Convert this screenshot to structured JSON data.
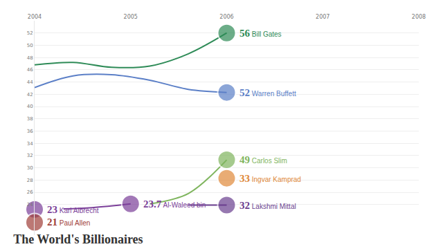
{
  "chart_data": {
    "type": "line",
    "title": "The World's Billionaires",
    "xlim": [
      2004,
      2008
    ],
    "xticks": [
      2004,
      2005,
      2006,
      2007,
      2008
    ],
    "ylim": [
      19,
      54
    ],
    "yticks": [
      24,
      26,
      28,
      30,
      32,
      34,
      36,
      38,
      40,
      42,
      44,
      46,
      48,
      50,
      52
    ],
    "grid": true,
    "marker": "circle",
    "line_style": "solid",
    "series": [
      {
        "name": "Bill Gates",
        "label": "56",
        "color": "#2e8b57",
        "x": [
          2004,
          2004.4,
          2004.8,
          2005.2,
          2005.6,
          2006
        ],
        "values": [
          46.8,
          47.2,
          46.4,
          46.6,
          48.6,
          52.0
        ]
      },
      {
        "name": "Warren Buffett",
        "label": "52",
        "color": "#5b7fc7",
        "x": [
          2004,
          2004.4,
          2004.8,
          2005.2,
          2005.6,
          2006
        ],
        "values": [
          43.1,
          45.0,
          45.2,
          44.3,
          42.8,
          42.3
        ]
      },
      {
        "name": "Carlos Slim",
        "label": "49",
        "color": "#7fb55e",
        "x": [
          2005.2,
          2005.6,
          2006
        ],
        "values": [
          24.1,
          25.8,
          31.3
        ]
      },
      {
        "name": "Ingvar Kamprad",
        "label": "33",
        "color": "#e0893a",
        "x": [
          2006
        ],
        "values": [
          28.3
        ]
      },
      {
        "name": "Lakshmi Mittal",
        "label": "32",
        "color": "#6b3f8f",
        "x": [
          2005.6,
          2006
        ],
        "values": [
          23.9,
          23.9
        ]
      },
      {
        "name": "Al-Waleed bin",
        "label": "23.7",
        "color": "#7b3f99",
        "x": [
          2004.3,
          2004.6,
          2005
        ],
        "values": [
          23.3,
          23.5,
          24.1
        ]
      },
      {
        "name": "Kari Albrecht",
        "label": "23",
        "color": "#7b3f99",
        "x": [
          2004
        ],
        "values": [
          23.2
        ]
      },
      {
        "name": "Paul Allen",
        "label": "21",
        "color": "#a0403a",
        "x": [
          2004
        ],
        "values": [
          21.1
        ]
      }
    ]
  }
}
